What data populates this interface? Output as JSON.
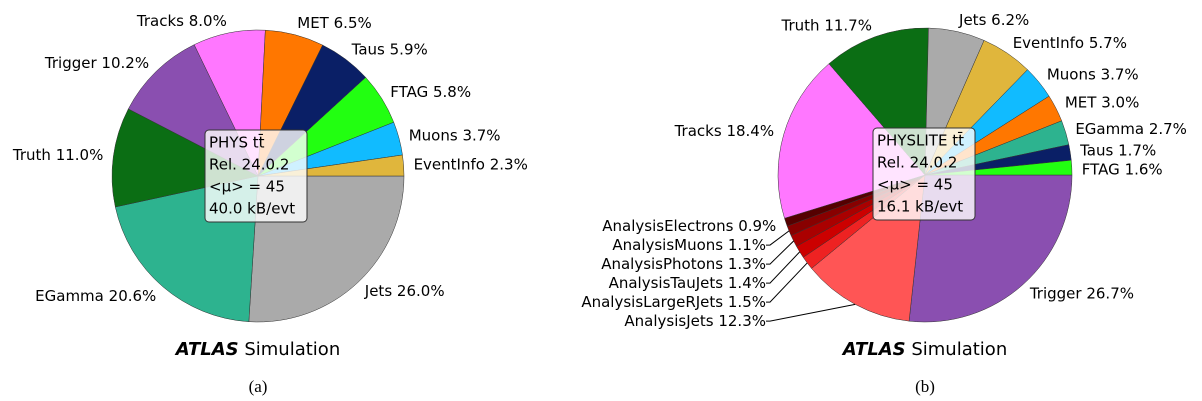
{
  "chart_data": [
    {
      "type": "pie",
      "categories": [
        "Jets",
        "EGamma",
        "Truth",
        "Trigger",
        "Tracks",
        "MET",
        "Taus",
        "FTAG",
        "Muons",
        "EventInfo"
      ],
      "values": [
        26.0,
        20.6,
        11.0,
        10.2,
        8.0,
        6.5,
        5.9,
        5.8,
        3.7,
        2.3
      ],
      "value_labels": [
        "26.0%",
        "20.6%",
        "11.0%",
        "10.2%",
        "8.0%",
        "6.5%",
        "5.9%",
        "5.8%",
        "3.7%",
        "2.3%"
      ],
      "colors": [
        "#aaaaaa",
        "#2db38f",
        "#0b6e14",
        "#8a4fb0",
        "#ff77ff",
        "#ff7700",
        "#0a1f66",
        "#22ff11",
        "#11bbff",
        "#e0b63c"
      ],
      "annotation": [
        "PHYS tt̄",
        "Rel. 24.0.2",
        "<μ> = 45",
        "40.0 kB/evt"
      ],
      "footer": {
        "bold": "ATLAS",
        "text": "Simulation"
      },
      "caption": "(a)"
    },
    {
      "type": "pie",
      "categories": [
        "Trigger",
        "AnalysisJets",
        "AnalysisLargeRJets",
        "AnalysisTauJets",
        "AnalysisPhotons",
        "AnalysisMuons",
        "AnalysisElectrons",
        "Tracks",
        "Truth",
        "Jets",
        "EventInfo",
        "Muons",
        "MET",
        "EGamma",
        "Taus",
        "FTAG"
      ],
      "values": [
        26.7,
        12.3,
        1.5,
        1.4,
        1.3,
        1.1,
        0.9,
        18.4,
        11.7,
        6.2,
        5.7,
        3.7,
        3.0,
        2.7,
        1.7,
        1.6
      ],
      "value_labels": [
        "26.7%",
        "12.3%",
        "1.5%",
        "1.4%",
        "1.3%",
        "1.1%",
        "0.9%",
        "18.4%",
        "11.7%",
        "6.2%",
        "5.7%",
        "3.7%",
        "3.0%",
        "2.7%",
        "1.7%",
        "1.6%"
      ],
      "colors": [
        "#8a4fb0",
        "#ff5555",
        "#ee2222",
        "#cc0000",
        "#aa0000",
        "#880000",
        "#550000",
        "#ff77ff",
        "#0b6e14",
        "#aaaaaa",
        "#e0b63c",
        "#11bbff",
        "#ff7700",
        "#2db38f",
        "#0a1f66",
        "#22ff11"
      ],
      "annotation": [
        "PHYSLITE tt̄",
        "Rel. 24.0.2",
        "<μ> = 45",
        "16.1 kB/evt"
      ],
      "footer": {
        "bold": "ATLAS",
        "text": "Simulation"
      },
      "caption": "(b)"
    }
  ]
}
